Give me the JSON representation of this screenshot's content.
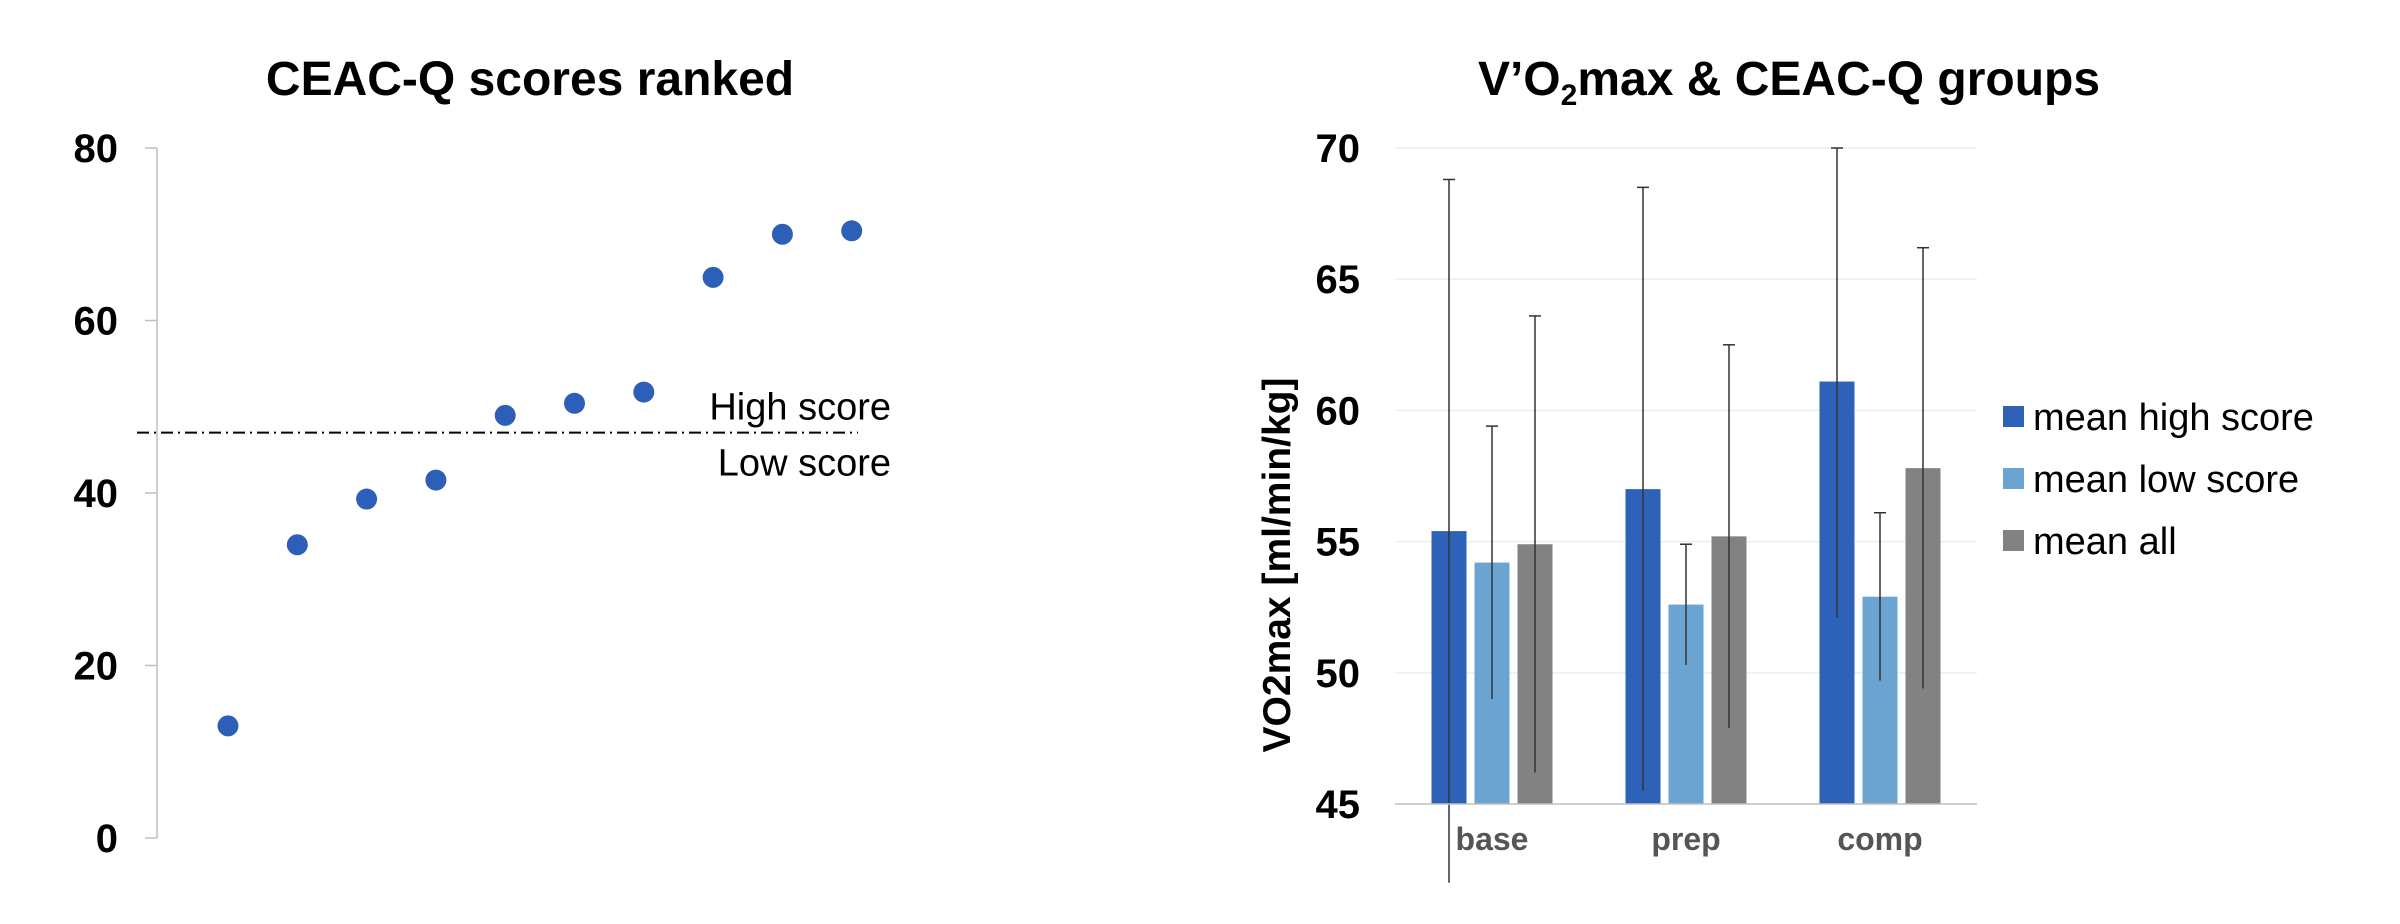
{
  "chart_data": [
    {
      "type": "scatter",
      "title": "CEAC-Q scores ranked",
      "ylim": [
        0,
        80
      ],
      "y_ticks": [
        "0",
        "20",
        "40",
        "60",
        "80"
      ],
      "threshold": 47,
      "threshold_labels": [
        "High score",
        "Low score"
      ],
      "grid": false,
      "series": [
        {
          "color": "#2E5FB8",
          "x": [
            1,
            2,
            3,
            4,
            5,
            6,
            7,
            8,
            9,
            10
          ],
          "y": [
            13,
            34,
            39.3,
            41.5,
            49,
            50.4,
            51.7,
            65,
            70,
            70.4
          ]
        }
      ]
    },
    {
      "type": "bar",
      "title_parts": {
        "pre": "V’O",
        "sub": "2",
        "post": "max & CEAC-Q groups"
      },
      "ylabel": "VO2max [ml/min/kg]",
      "ylim": [
        45,
        70
      ],
      "y_ticks": [
        "45",
        "50",
        "55",
        "60",
        "65",
        "70"
      ],
      "grid": true,
      "legend_position": "right",
      "categories": [
        "base",
        "prep",
        "comp"
      ],
      "series": [
        {
          "name": "mean high score",
          "color": "#2E62B9",
          "values": [
            55.4,
            57.0,
            61.1
          ],
          "error": [
            13.4,
            11.5,
            9.0
          ]
        },
        {
          "name": "mean low score",
          "color": "#6BA3D1",
          "values": [
            54.2,
            52.6,
            52.9
          ],
          "error": [
            5.2,
            2.3,
            3.2
          ]
        },
        {
          "name": "mean all",
          "color": "#828282",
          "values": [
            54.9,
            55.2,
            57.8
          ],
          "error": [
            8.7,
            7.3,
            8.4
          ]
        }
      ]
    }
  ]
}
